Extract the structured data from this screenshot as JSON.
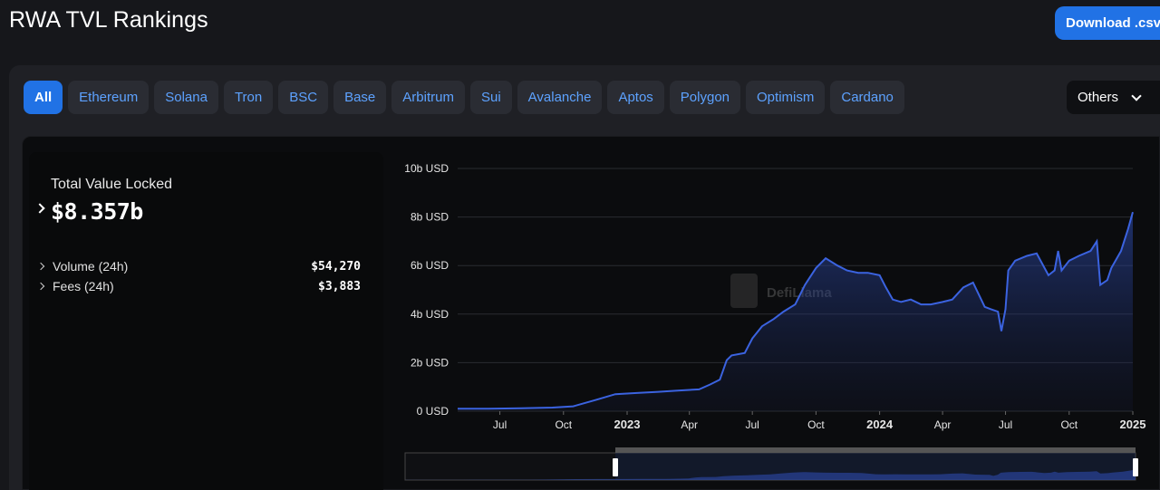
{
  "header": {
    "title": "RWA TVL Rankings",
    "download_label": "Download .csv"
  },
  "chains": {
    "items": [
      "All",
      "Ethereum",
      "Solana",
      "Tron",
      "BSC",
      "Base",
      "Arbitrum",
      "Sui",
      "Avalanche",
      "Aptos",
      "Polygon",
      "Optimism",
      "Cardano"
    ],
    "active": "All",
    "others_label": "Others"
  },
  "stats": {
    "tvl_label": "Total Value Locked",
    "tvl_value": "$8.357b",
    "volume_label": "Volume (24h)",
    "volume_value": "$54,270",
    "fees_label": "Fees (24h)",
    "fees_value": "$3,883"
  },
  "watermark": "DefiLlama",
  "colors": {
    "accent": "#2172e5",
    "line": "#3b63e0",
    "link": "#5da2ff"
  },
  "chart_data": {
    "type": "area",
    "y_ticks": [
      "0 USD",
      "2b USD",
      "4b USD",
      "6b USD",
      "8b USD",
      "10b USD"
    ],
    "ylim": [
      0,
      10
    ],
    "y_unit": "b USD",
    "x_ticks": [
      {
        "date": "2022-07-01",
        "label": "Jul",
        "bold": false
      },
      {
        "date": "2022-10-01",
        "label": "Oct",
        "bold": false
      },
      {
        "date": "2023-01-01",
        "label": "2023",
        "bold": true
      },
      {
        "date": "2023-04-01",
        "label": "Apr",
        "bold": false
      },
      {
        "date": "2023-07-01",
        "label": "Jul",
        "bold": false
      },
      {
        "date": "2023-10-01",
        "label": "Oct",
        "bold": false
      },
      {
        "date": "2024-01-01",
        "label": "2024",
        "bold": true
      },
      {
        "date": "2024-04-01",
        "label": "Apr",
        "bold": false
      },
      {
        "date": "2024-07-01",
        "label": "Jul",
        "bold": false
      },
      {
        "date": "2024-10-01",
        "label": "Oct",
        "bold": false
      },
      {
        "date": "2025-01-01",
        "label": "2025",
        "bold": true
      }
    ],
    "xlim": [
      "2022-05-01",
      "2025-01-01"
    ],
    "series": [
      {
        "x": [
          "2022-05-01",
          "2022-06-15",
          "2022-08-01",
          "2022-09-15",
          "2022-10-15",
          "2022-11-15",
          "2022-12-15",
          "2023-01-15",
          "2023-02-15",
          "2023-03-15",
          "2023-04-15",
          "2023-05-01",
          "2023-05-15",
          "2023-05-25",
          "2023-06-01",
          "2023-06-20",
          "2023-07-01",
          "2023-07-15",
          "2023-08-01",
          "2023-08-15",
          "2023-09-01",
          "2023-09-15",
          "2023-10-01",
          "2023-10-15",
          "2023-11-01",
          "2023-11-15",
          "2023-12-01",
          "2023-12-15",
          "2024-01-01",
          "2024-01-10",
          "2024-01-20",
          "2024-02-01",
          "2024-02-15",
          "2024-03-01",
          "2024-03-15",
          "2024-04-01",
          "2024-04-15",
          "2024-05-01",
          "2024-05-15",
          "2024-06-01",
          "2024-06-10",
          "2024-06-20",
          "2024-06-25",
          "2024-07-01",
          "2024-07-05",
          "2024-07-15",
          "2024-08-01",
          "2024-08-15",
          "2024-09-01",
          "2024-09-10",
          "2024-09-15",
          "2024-09-20",
          "2024-10-01",
          "2024-10-15",
          "2024-11-01",
          "2024-11-10",
          "2024-11-15",
          "2024-11-25",
          "2024-12-01",
          "2024-12-15",
          "2024-12-25",
          "2025-01-01"
        ],
        "y": [
          0.1,
          0.1,
          0.12,
          0.15,
          0.2,
          0.45,
          0.7,
          0.75,
          0.8,
          0.85,
          0.9,
          1.1,
          1.3,
          2.1,
          2.3,
          2.4,
          3.0,
          3.5,
          3.8,
          4.1,
          4.4,
          5.2,
          5.9,
          6.3,
          6.0,
          5.8,
          5.7,
          5.7,
          5.6,
          5.1,
          4.6,
          4.5,
          4.6,
          4.4,
          4.4,
          4.5,
          4.6,
          5.1,
          5.3,
          4.3,
          4.2,
          4.1,
          3.3,
          4.2,
          5.8,
          6.2,
          6.4,
          6.5,
          5.6,
          5.8,
          6.6,
          5.8,
          6.2,
          6.4,
          6.6,
          7.0,
          5.2,
          5.4,
          5.9,
          6.6,
          7.5,
          8.2
        ]
      }
    ]
  }
}
